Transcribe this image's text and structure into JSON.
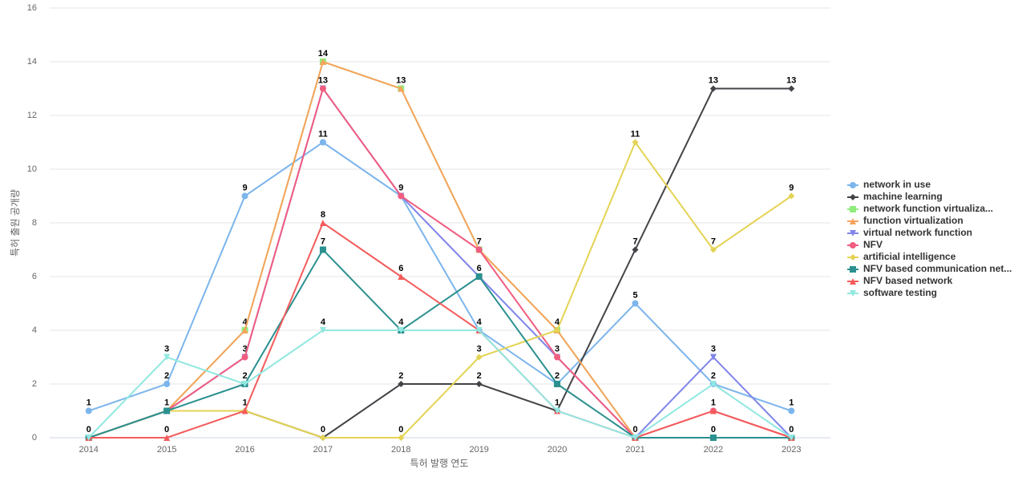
{
  "chart_data": {
    "type": "line",
    "x_label": "특허 발행 연도",
    "y_label": "특허 출원 공개량",
    "categories": [
      "2014",
      "2015",
      "2016",
      "2017",
      "2018",
      "2019",
      "2020",
      "2021",
      "2022",
      "2023"
    ],
    "ylim": [
      0,
      16
    ],
    "yticks": [
      0,
      2,
      4,
      6,
      8,
      10,
      12,
      14,
      16
    ],
    "grid": true,
    "legend": "right",
    "data_labels": true,
    "series": [
      {
        "name": "network in use",
        "color": "#7cb5ec",
        "marker": "circle",
        "values": [
          1,
          2,
          9,
          11,
          9,
          4,
          2,
          5,
          2,
          1
        ]
      },
      {
        "name": "machine learning",
        "color": "#434348",
        "marker": "diamond",
        "values": [
          0,
          1,
          1,
          0,
          2,
          2,
          1,
          7,
          13,
          13
        ]
      },
      {
        "name": "network function virtualiza...",
        "color": "#90ed7d",
        "marker": "square",
        "values": [
          0,
          1,
          4,
          14,
          13,
          7,
          4,
          0,
          0,
          0
        ]
      },
      {
        "name": "function virtualization",
        "color": "#f7a35c",
        "marker": "triangle",
        "values": [
          0,
          1,
          4,
          14,
          13,
          7,
          4,
          0,
          0,
          0
        ]
      },
      {
        "name": "virtual network function",
        "color": "#8085e9",
        "marker": "triangle-down",
        "values": [
          0,
          1,
          3,
          13,
          9,
          6,
          3,
          0,
          3,
          0
        ]
      },
      {
        "name": "NFV",
        "color": "#f15c80",
        "marker": "circle",
        "values": [
          0,
          1,
          3,
          13,
          9,
          7,
          3,
          0,
          1,
          0
        ]
      },
      {
        "name": "artificial intelligence",
        "color": "#e4d354",
        "marker": "diamond",
        "values": [
          0,
          1,
          1,
          0,
          0,
          3,
          4,
          11,
          7,
          9
        ]
      },
      {
        "name": "NFV based communication net...",
        "color": "#2b908f",
        "marker": "square",
        "values": [
          0,
          1,
          2,
          7,
          4,
          6,
          2,
          0,
          0,
          0
        ]
      },
      {
        "name": "NFV based network",
        "color": "#f45b5b",
        "marker": "triangle",
        "values": [
          0,
          0,
          1,
          8,
          6,
          4,
          1,
          0,
          1,
          0
        ]
      },
      {
        "name": "software testing",
        "color": "#91e8e1",
        "marker": "triangle-down",
        "values": [
          0,
          3,
          2,
          4,
          4,
          4,
          1,
          0,
          2,
          0
        ]
      }
    ]
  }
}
